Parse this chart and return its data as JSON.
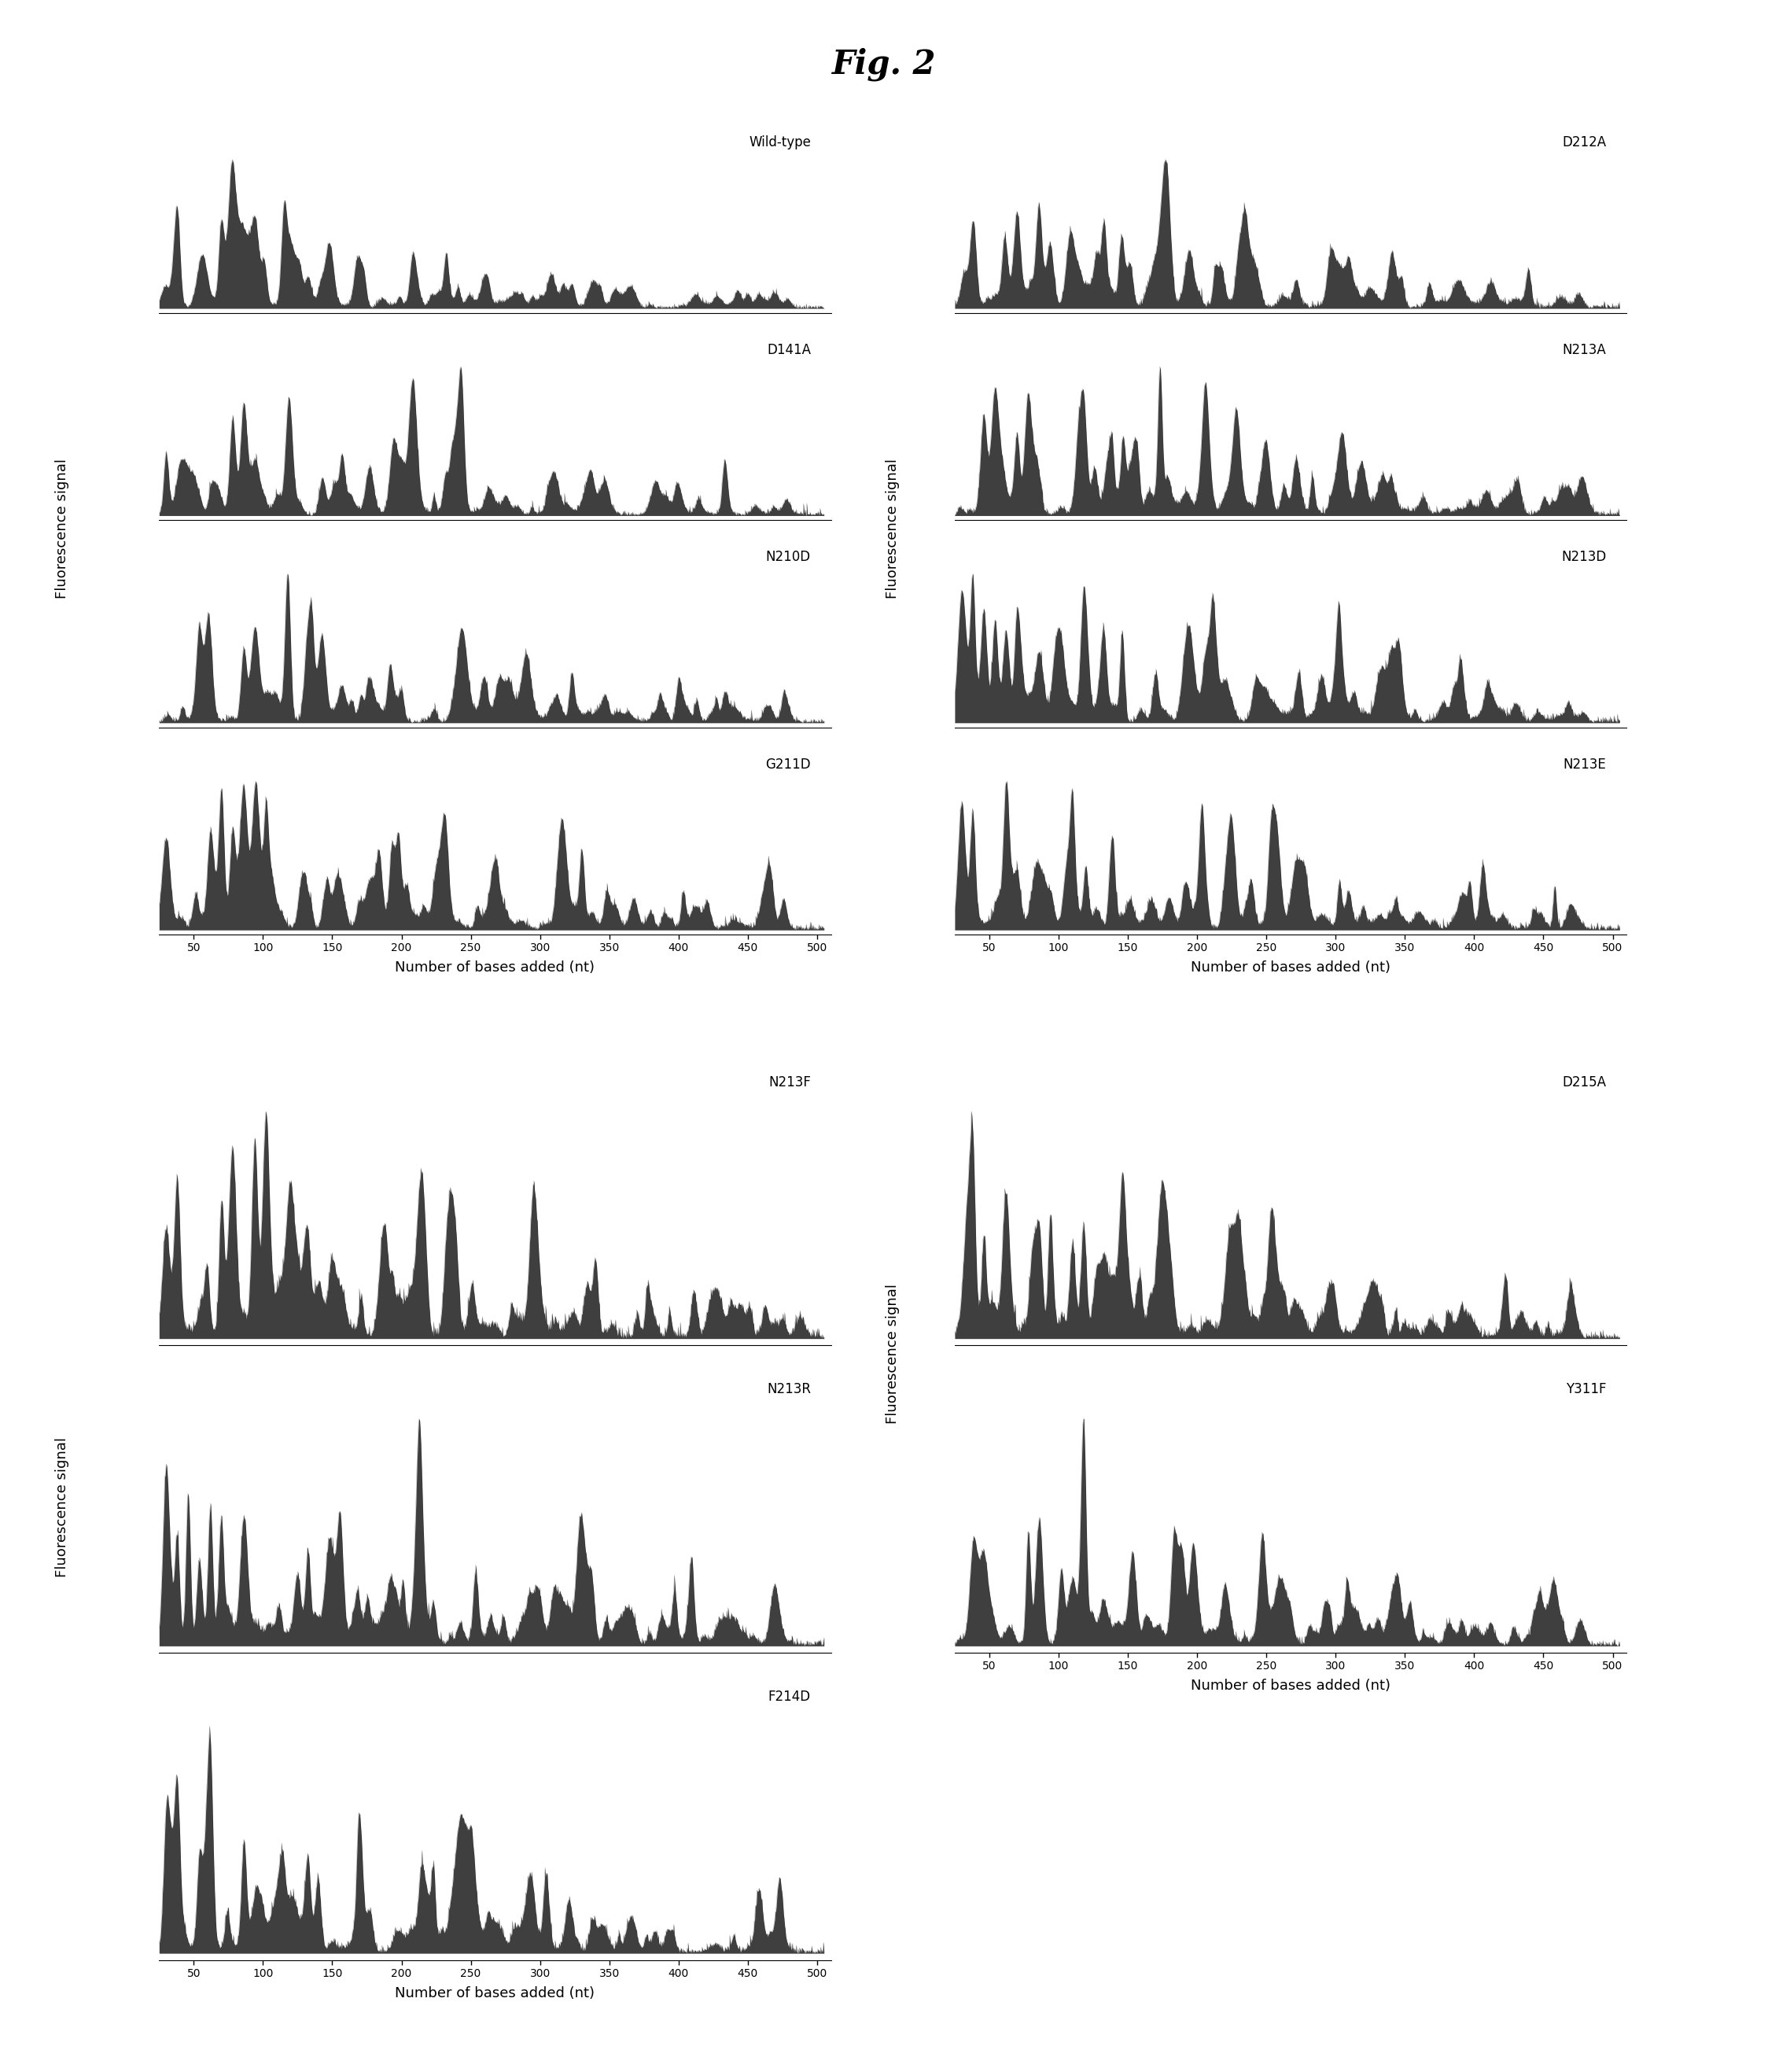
{
  "title": "Fig. 2",
  "panel_labels_top_left": [
    "Wild-type",
    "D141A",
    "N210D",
    "G211D"
  ],
  "panel_labels_top_right": [
    "D212A",
    "N213A",
    "N213D",
    "N213E"
  ],
  "panel_labels_bot_left": [
    "N213F",
    "N213R",
    "F214D"
  ],
  "panel_labels_bot_right": [
    "D215A",
    "Y311F"
  ],
  "ylabel": "Fluorescence signal",
  "xlabel": "Number of bases added (nt)",
  "xmin": 25,
  "xmax": 510,
  "xticks": [
    50,
    100,
    150,
    200,
    250,
    300,
    350,
    400,
    450,
    500
  ],
  "background_color": "#ffffff"
}
